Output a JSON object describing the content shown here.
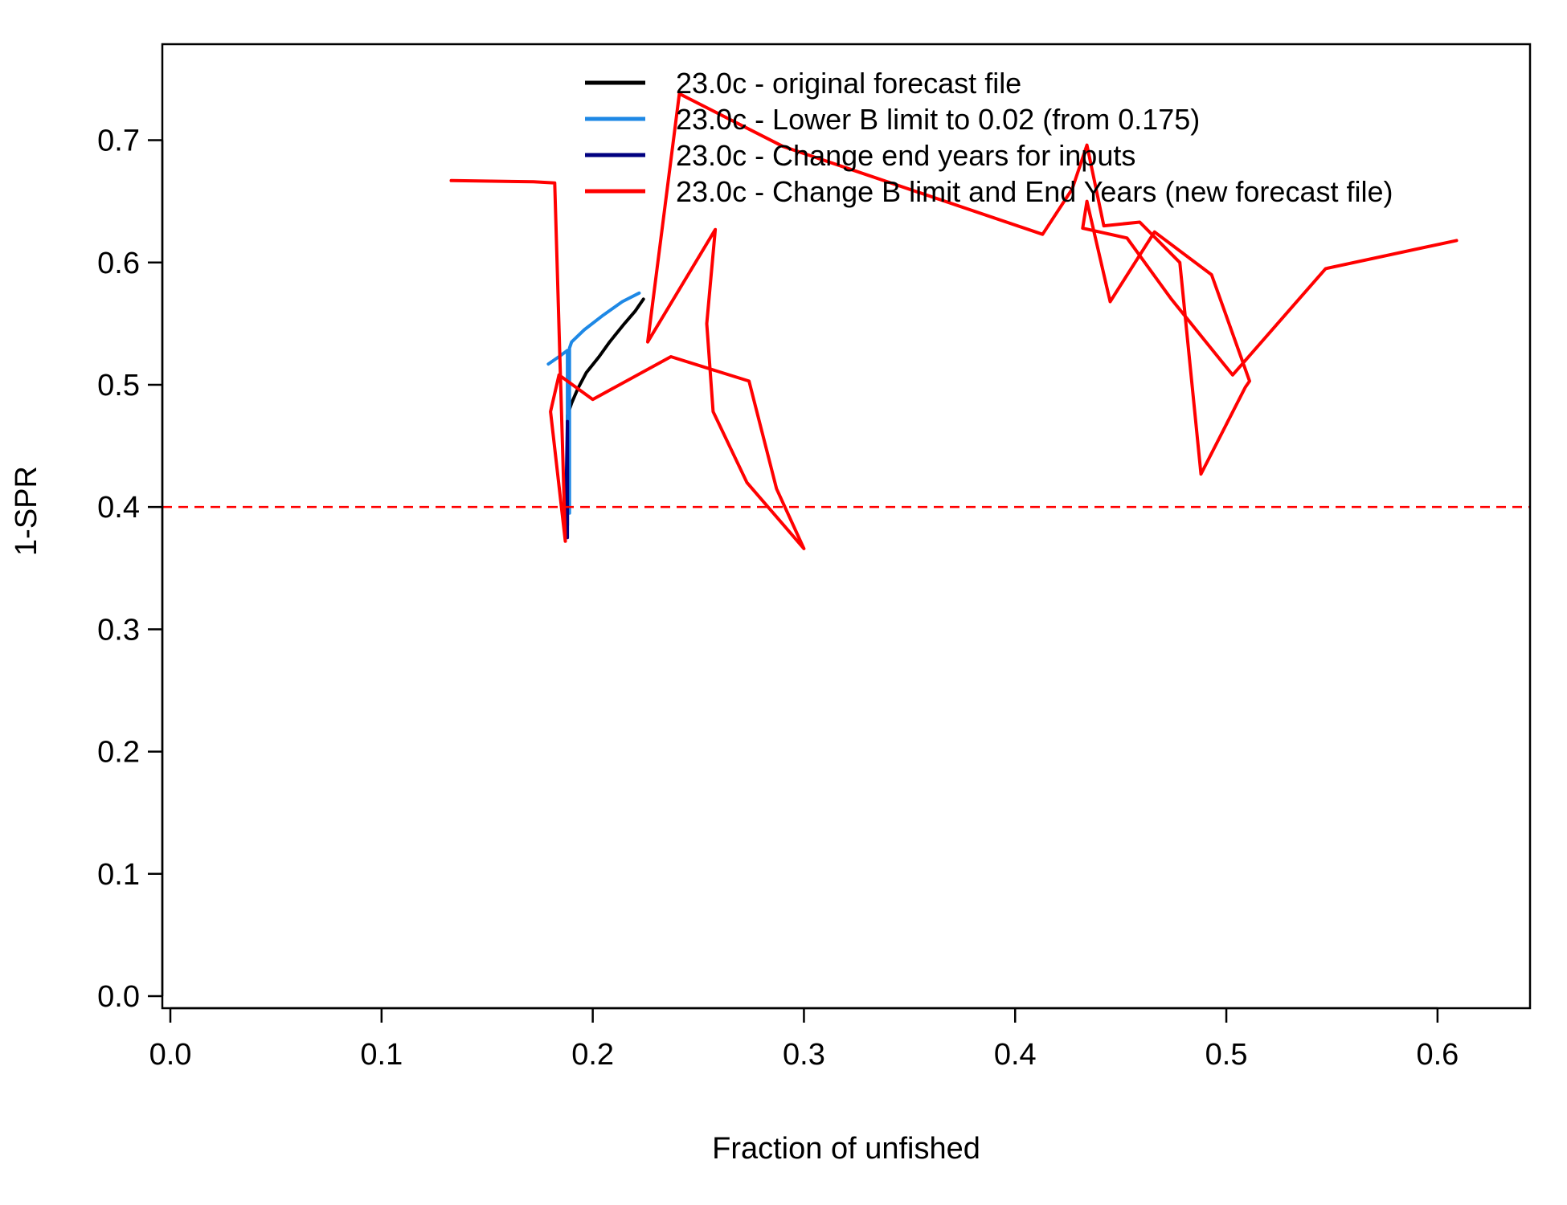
{
  "chart_data": {
    "type": "line",
    "xlabel": "Fraction of unfished",
    "ylabel": "1-SPR",
    "xlim": [
      0.0,
      0.64
    ],
    "ylim": [
      0.0,
      0.77
    ],
    "x_ticks": [
      "0.0",
      "0.1",
      "0.2",
      "0.3",
      "0.4",
      "0.5",
      "0.6"
    ],
    "y_ticks": [
      "0.0",
      "0.1",
      "0.2",
      "0.3",
      "0.4",
      "0.5",
      "0.6",
      "0.7"
    ],
    "grid": false,
    "legend_position": "top-right",
    "reference_line": {
      "y": 0.4,
      "style": "dashed",
      "color": "#ff0000"
    },
    "series": [
      {
        "name": "23.0c - original forecast file",
        "color": "#000000",
        "x": [
          0.188,
          0.188,
          0.19,
          0.193,
          0.197,
          0.203,
          0.208,
          0.215,
          0.22,
          0.224
        ],
        "y": [
          0.385,
          0.475,
          0.485,
          0.497,
          0.51,
          0.523,
          0.535,
          0.55,
          0.56,
          0.57
        ]
      },
      {
        "name": "23.0c - Lower B limit to 0.02 (from 0.175)",
        "color": "#1e88e5",
        "x": [
          0.179,
          0.184,
          0.188,
          0.188,
          0.189,
          0.189,
          0.19,
          0.196,
          0.205,
          0.214,
          0.222
        ],
        "y": [
          0.517,
          0.523,
          0.528,
          0.395,
          0.395,
          0.53,
          0.535,
          0.545,
          0.557,
          0.568,
          0.575
        ]
      },
      {
        "name": "23.0c - Change end years for inputs",
        "color": "#000080",
        "x": [
          0.187,
          0.188,
          0.188
        ],
        "y": [
          0.375,
          0.47,
          0.375
        ]
      },
      {
        "name": "23.0c - Change B limit and End Years (new forecast file)",
        "color": "#ff0000",
        "x": [
          0.133,
          0.172,
          0.182,
          0.187,
          0.18,
          0.184,
          0.2,
          0.237,
          0.274,
          0.287,
          0.3,
          0.273,
          0.257,
          0.254,
          0.258,
          0.226,
          0.241,
          0.29,
          0.413,
          0.427,
          0.434,
          0.442,
          0.459,
          0.478,
          0.488,
          0.509,
          0.511,
          0.493,
          0.466,
          0.445,
          0.434,
          0.432,
          0.453,
          0.474,
          0.503,
          0.547,
          0.609
        ],
        "y": [
          0.667,
          0.666,
          0.665,
          0.372,
          0.478,
          0.508,
          0.488,
          0.523,
          0.503,
          0.415,
          0.366,
          0.42,
          0.478,
          0.55,
          0.627,
          0.535,
          0.738,
          0.695,
          0.623,
          0.66,
          0.696,
          0.63,
          0.633,
          0.6,
          0.427,
          0.498,
          0.503,
          0.59,
          0.625,
          0.568,
          0.65,
          0.628,
          0.62,
          0.57,
          0.508,
          0.595,
          0.618
        ]
      }
    ]
  }
}
